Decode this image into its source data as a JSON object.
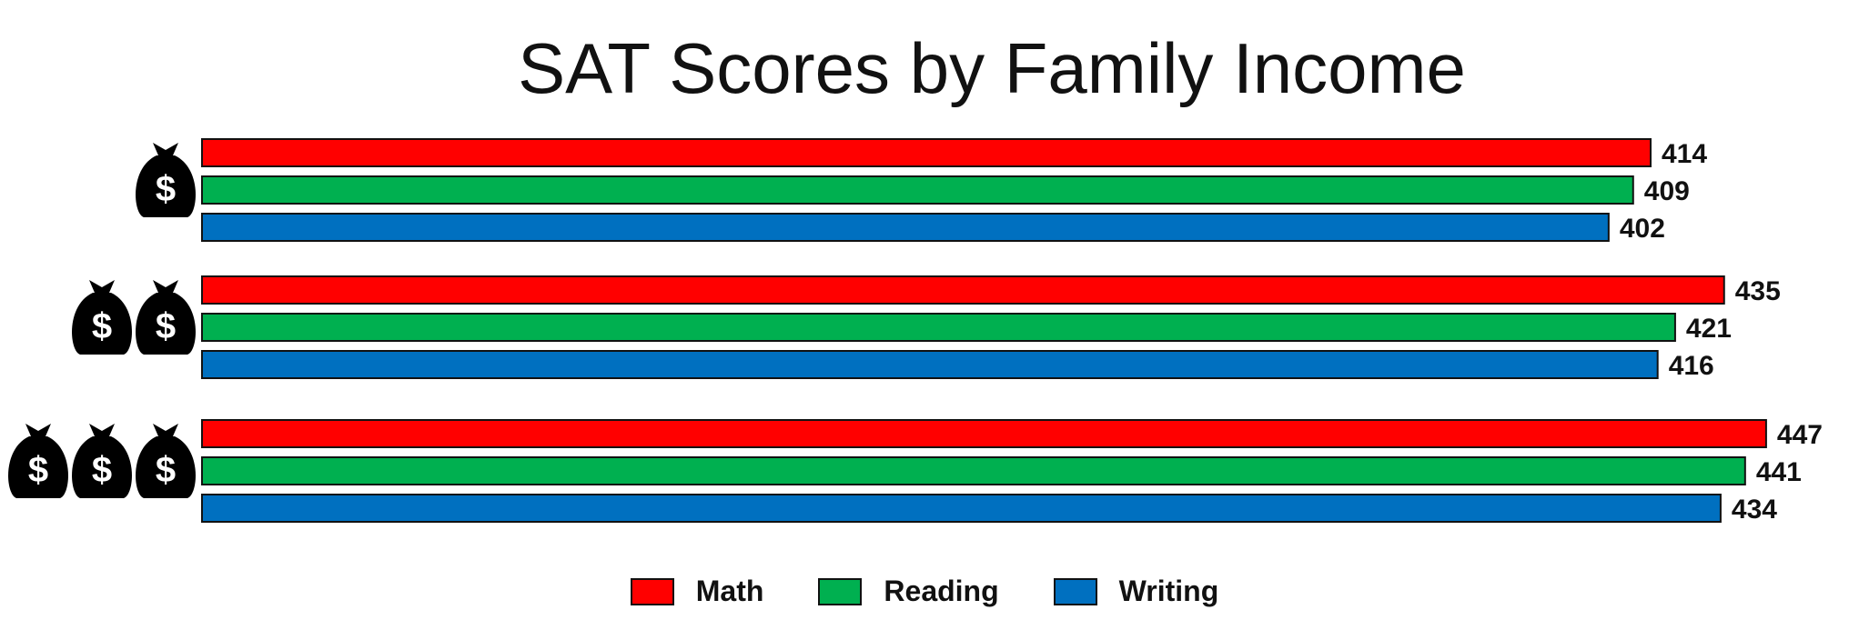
{
  "chart_data": {
    "type": "bar",
    "orientation": "horizontal",
    "title": "SAT Scores by Family Income",
    "categories": [
      {
        "income_level": 1,
        "icon": "money-bag-icon"
      },
      {
        "income_level": 2,
        "icon": "money-bag-icon"
      },
      {
        "income_level": 3,
        "icon": "money-bag-icon"
      }
    ],
    "series": [
      {
        "name": "Math",
        "color": "#FF0000",
        "values": [
          414,
          435,
          447
        ]
      },
      {
        "name": "Reading",
        "color": "#00B050",
        "values": [
          409,
          421,
          441
        ]
      },
      {
        "name": "Writing",
        "color": "#0070C0",
        "values": [
          402,
          416,
          434
        ]
      }
    ],
    "data_labels": true,
    "legend_placement": "bottom",
    "grid": false
  }
}
